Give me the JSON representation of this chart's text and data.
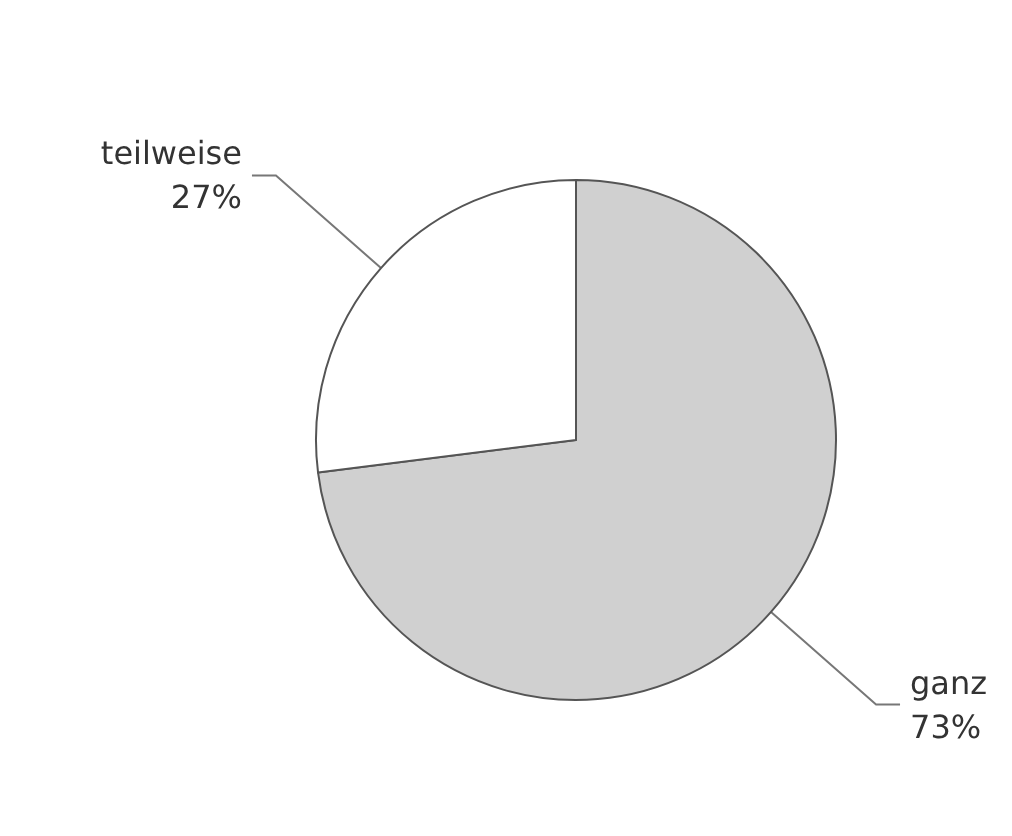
{
  "chart_data": {
    "type": "pie",
    "categories": [
      "ganz",
      "teilweise"
    ],
    "values": [
      73,
      27
    ],
    "colors": [
      "#d0d0d0",
      "#ffffff"
    ],
    "value_labels": [
      "73%",
      "27%"
    ],
    "legend": false
  }
}
